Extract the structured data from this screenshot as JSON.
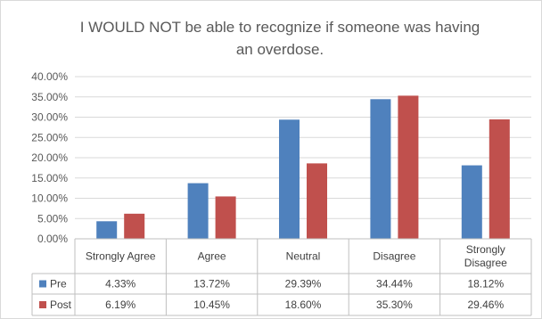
{
  "chart_data": {
    "type": "bar",
    "title": "I WOULD NOT be able to recognize if someone was having an overdose.",
    "title_lines": [
      "I WOULD NOT be able to recognize if someone was having",
      "an overdose."
    ],
    "categories": [
      "Strongly Agree",
      "Agree",
      "Neutral",
      "Disagree",
      "Strongly Disagree"
    ],
    "category_lines": [
      [
        "Strongly Agree"
      ],
      [
        "Agree"
      ],
      [
        "Neutral"
      ],
      [
        "Disagree"
      ],
      [
        "Strongly",
        "Disagree"
      ]
    ],
    "series": [
      {
        "name": "Pre",
        "color": "#4f81bd",
        "values": [
          4.33,
          13.72,
          29.39,
          34.44,
          18.12
        ],
        "labels": [
          "4.33%",
          "13.72%",
          "29.39%",
          "34.44%",
          "18.12%"
        ]
      },
      {
        "name": "Post",
        "color": "#c0504d",
        "values": [
          6.19,
          10.45,
          18.6,
          35.3,
          29.46
        ],
        "labels": [
          "6.19%",
          "10.45%",
          "18.60%",
          "35.30%",
          "29.46%"
        ]
      }
    ],
    "ylim": [
      0,
      40
    ],
    "yticks": [
      "0.00%",
      "5.00%",
      "10.00%",
      "15.00%",
      "20.00%",
      "25.00%",
      "30.00%",
      "35.00%",
      "40.00%"
    ],
    "grid": true,
    "legend": "data-table",
    "xlabel": "",
    "ylabel": ""
  }
}
